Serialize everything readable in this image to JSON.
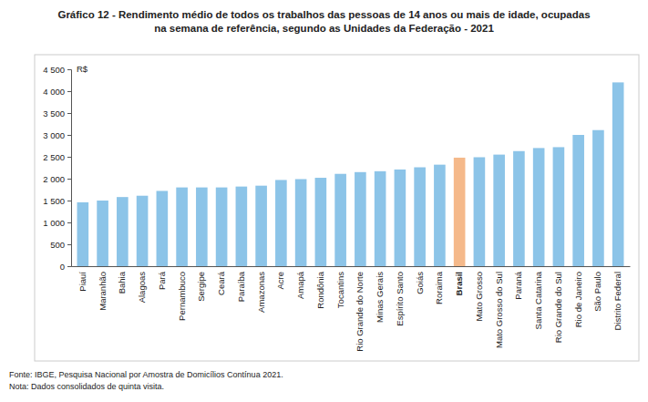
{
  "chart_data": {
    "type": "bar",
    "title": [
      "Gráfico 12 - Rendimento médio de todos os trabalhos das pessoas de 14 anos ou mais de idade, ocupadas",
      "na semana de referência, segundo as Unidades da Federação - 2021"
    ],
    "y_label": "R$",
    "categories": [
      "Piauí",
      "Maranhão",
      "Bahia",
      "Alagoas",
      "Pará",
      "Pernambuco",
      "Sergipe",
      "Ceará",
      "Paraíba",
      "Amazonas",
      "Acre",
      "Amapá",
      "Rondônia",
      "Tocantins",
      "Rio Grande do Norte",
      "Minas Gerais",
      "Espírito Santo",
      "Goiás",
      "Roraima",
      "Brasil",
      "Mato Grosso",
      "Mato Grosso do Sul",
      "Paraná",
      "Santa Catarina",
      "Rio Grande do Sul",
      "Rio de Janeiro",
      "São Paulo",
      "Distrito Federal"
    ],
    "values": [
      1460,
      1500,
      1580,
      1610,
      1720,
      1800,
      1800,
      1800,
      1820,
      1840,
      1970,
      1990,
      2020,
      2110,
      2150,
      2170,
      2210,
      2260,
      2320,
      2480,
      2490,
      2550,
      2630,
      2700,
      2720,
      3000,
      3110,
      4200
    ],
    "colors": [
      "#8cc4e8",
      "#8cc4e8",
      "#8cc4e8",
      "#8cc4e8",
      "#8cc4e8",
      "#8cc4e8",
      "#8cc4e8",
      "#8cc4e8",
      "#8cc4e8",
      "#8cc4e8",
      "#8cc4e8",
      "#8cc4e8",
      "#8cc4e8",
      "#8cc4e8",
      "#8cc4e8",
      "#8cc4e8",
      "#8cc4e8",
      "#8cc4e8",
      "#8cc4e8",
      "#f5b98a",
      "#8cc4e8",
      "#8cc4e8",
      "#8cc4e8",
      "#8cc4e8",
      "#8cc4e8",
      "#8cc4e8",
      "#8cc4e8",
      "#8cc4e8"
    ],
    "ylim": [
      0,
      4500
    ],
    "yticks": [
      0,
      500,
      {
        "value": 1000,
        "label": "1 000"
      },
      {
        "value": 1500,
        "label": "1 500"
      },
      {
        "value": 2000,
        "label": "2 000"
      },
      {
        "value": 2500,
        "label": "2 500"
      },
      {
        "value": 3000,
        "label": "3 000"
      },
      {
        "value": 3500,
        "label": "3 500"
      },
      {
        "value": 4000,
        "label": "4 000"
      },
      {
        "value": 4500,
        "label": "4 500"
      }
    ],
    "grid": false,
    "source": "Fonte: IBGE, Pesquisa Nacional por Amostra de Domicílios Contínua 2021.",
    "note": "Nota: Dados consolidados de quinta visita."
  }
}
